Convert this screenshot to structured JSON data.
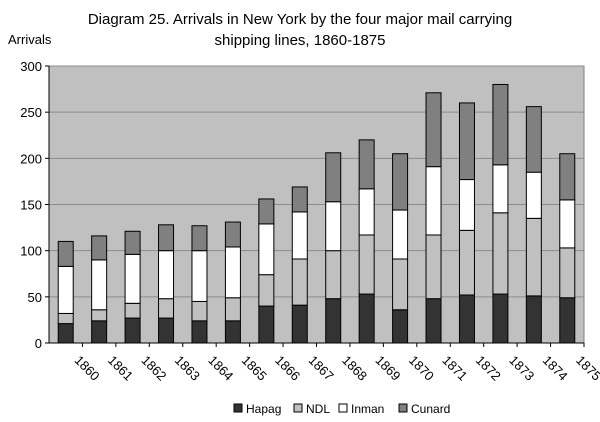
{
  "chart_data": {
    "type": "bar",
    "stacked": true,
    "title_line1": "Diagram 25. Arrivals in New York by the four major mail carrying",
    "title_line2": "shipping lines, 1860-1875",
    "ylabel": "Arrivals",
    "xlabel": "",
    "ylim": [
      0,
      300
    ],
    "yticks": [
      0,
      50,
      100,
      150,
      200,
      250,
      300
    ],
    "grid": true,
    "legend_position": "bottom",
    "categories": [
      "1860",
      "1861",
      "1862",
      "1863",
      "1864",
      "1865",
      "1866",
      "1867",
      "1868",
      "1869",
      "1870",
      "1871",
      "1872",
      "1873",
      "1874",
      "1875"
    ],
    "series": [
      {
        "name": "Hapag",
        "color": "#333333",
        "values": [
          21,
          24,
          27,
          27,
          24,
          24,
          40,
          41,
          48,
          53,
          36,
          48,
          52,
          53,
          51,
          49
        ]
      },
      {
        "name": "NDL",
        "color": "#c0c0c0",
        "values": [
          11,
          12,
          16,
          21,
          21,
          25,
          34,
          50,
          52,
          64,
          55,
          69,
          70,
          88,
          84,
          54
        ]
      },
      {
        "name": "Inman",
        "color": "#ffffff",
        "values": [
          51,
          54,
          53,
          52,
          55,
          55,
          55,
          51,
          53,
          50,
          53,
          74,
          55,
          52,
          50,
          52
        ]
      },
      {
        "name": "Cunard",
        "color": "#808080",
        "values": [
          27,
          26,
          25,
          28,
          27,
          27,
          27,
          27,
          53,
          53,
          61,
          80,
          83,
          87,
          71,
          50
        ]
      }
    ]
  }
}
